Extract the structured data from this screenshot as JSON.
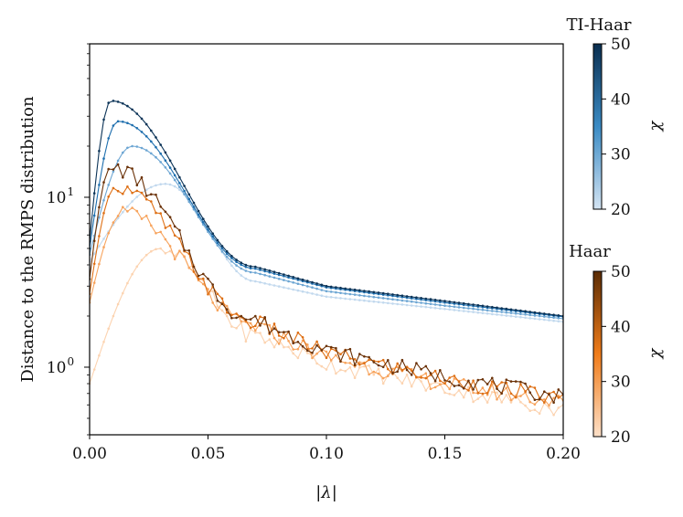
{
  "chart_data": {
    "type": "line",
    "ylabel": "Distance to the RMPS distribution",
    "xlabel": "|λ|",
    "xlim": [
      0,
      0.2
    ],
    "ylim": [
      0.4,
      80
    ],
    "yscale": "log",
    "xticks": [
      "0.00",
      "0.05",
      "0.10",
      "0.15",
      "0.20"
    ],
    "yticks": [
      {
        "base": "10",
        "exp": "0",
        "value": 1
      },
      {
        "base": "10",
        "exp": "1",
        "value": 10
      }
    ],
    "colorbars": [
      {
        "title": "TI-Haar",
        "label": "χ",
        "range": [
          20,
          50
        ],
        "ticks": [
          "20",
          "30",
          "40",
          "50"
        ],
        "color_low": "#d4e4f3",
        "color_mid": "#3b8bc4",
        "color_high": "#0a2e4f"
      },
      {
        "title": "Haar",
        "label": "χ",
        "range": [
          20,
          50
        ],
        "ticks": [
          "20",
          "30",
          "40",
          "50"
        ],
        "color_low": "#fde0c8",
        "color_mid": "#f07c1a",
        "color_high": "#5a2c05"
      }
    ],
    "series": [
      {
        "group": "TI-Haar",
        "chi": 20,
        "color": "#c2d9ee",
        "peak_x": 0.032,
        "peak_y": 12,
        "y0": 4.2,
        "tail_x": [
          0.07,
          0.1,
          0.15,
          0.2
        ],
        "tail_y": [
          3.2,
          2.6,
          2.2,
          1.85
        ]
      },
      {
        "group": "TI-Haar",
        "chi": 30,
        "color": "#6da6d3",
        "peak_x": 0.018,
        "peak_y": 20,
        "y0": 4.6,
        "tail_x": [
          0.07,
          0.1,
          0.15,
          0.2
        ],
        "tail_y": [
          3.6,
          2.8,
          2.3,
          1.93
        ]
      },
      {
        "group": "TI-Haar",
        "chi": 40,
        "color": "#1f6fae",
        "peak_x": 0.012,
        "peak_y": 28,
        "y0": 5.0,
        "tail_x": [
          0.07,
          0.1,
          0.15,
          0.2
        ],
        "tail_y": [
          3.8,
          2.95,
          2.4,
          1.98
        ]
      },
      {
        "group": "TI-Haar",
        "chi": 50,
        "color": "#0b3357",
        "peak_x": 0.009,
        "peak_y": 37,
        "y0": 5.5,
        "tail_x": [
          0.07,
          0.1,
          0.15,
          0.2
        ],
        "tail_y": [
          3.9,
          3.0,
          2.45,
          2.0
        ]
      },
      {
        "group": "Haar",
        "chi": 20,
        "color": "#fcd3b0",
        "peak_x": 0.03,
        "peak_y": 5.0,
        "y0": 0.8,
        "tail_x": [
          0.07,
          0.1,
          0.15,
          0.2
        ],
        "tail_y": [
          1.55,
          1.05,
          0.75,
          0.56
        ]
      },
      {
        "group": "Haar",
        "chi": 30,
        "color": "#f7a35c",
        "peak_x": 0.014,
        "peak_y": 8.0,
        "y0": 2.4,
        "tail_x": [
          0.07,
          0.1,
          0.15,
          0.2
        ],
        "tail_y": [
          1.75,
          1.15,
          0.8,
          0.62
        ]
      },
      {
        "group": "Haar",
        "chi": 40,
        "color": "#de6f14",
        "peak_x": 0.011,
        "peak_y": 11.5,
        "y0": 2.7,
        "tail_x": [
          0.07,
          0.1,
          0.15,
          0.2
        ],
        "tail_y": [
          1.85,
          1.22,
          0.85,
          0.65
        ]
      },
      {
        "group": "Haar",
        "chi": 50,
        "color": "#6b3208",
        "peak_x": 0.009,
        "peak_y": 15,
        "y0": 3.3,
        "tail_x": [
          0.07,
          0.1,
          0.15,
          0.2
        ],
        "tail_y": [
          1.9,
          1.25,
          0.88,
          0.67
        ]
      }
    ]
  }
}
